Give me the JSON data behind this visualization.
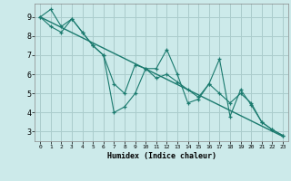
{
  "xlabel": "Humidex (Indice chaleur)",
  "background_color": "#cceaea",
  "grid_color": "#aacccc",
  "line_color": "#1a7a6e",
  "xlim": [
    -0.5,
    23.5
  ],
  "ylim": [
    2.5,
    9.7
  ],
  "yticks": [
    3,
    4,
    5,
    6,
    7,
    8,
    9
  ],
  "series1_x": [
    0,
    1,
    2,
    3,
    4,
    5,
    6,
    7,
    8,
    9,
    10,
    11,
    12,
    13,
    14,
    15,
    16,
    17,
    18,
    19,
    20,
    21,
    22,
    23
  ],
  "series1_y": [
    9.0,
    9.4,
    8.5,
    8.9,
    8.2,
    7.5,
    7.0,
    4.0,
    4.3,
    5.0,
    6.3,
    6.3,
    7.3,
    6.0,
    4.5,
    4.7,
    5.5,
    6.8,
    3.8,
    5.2,
    4.4,
    3.5,
    3.1,
    2.8
  ],
  "series2_x": [
    0,
    1,
    2,
    3,
    4,
    5,
    6,
    7,
    8,
    9,
    10,
    11,
    12,
    13,
    14,
    15,
    16,
    17,
    18,
    19,
    20,
    21,
    22,
    23
  ],
  "series2_y": [
    9.0,
    8.5,
    8.2,
    8.9,
    8.2,
    7.5,
    7.0,
    5.5,
    5.0,
    6.5,
    6.3,
    5.8,
    6.0,
    5.6,
    5.2,
    4.8,
    5.5,
    5.0,
    4.5,
    5.0,
    4.5,
    3.5,
    3.1,
    2.8
  ],
  "trend_x": [
    0,
    23
  ],
  "trend_y": [
    9.0,
    2.75
  ]
}
